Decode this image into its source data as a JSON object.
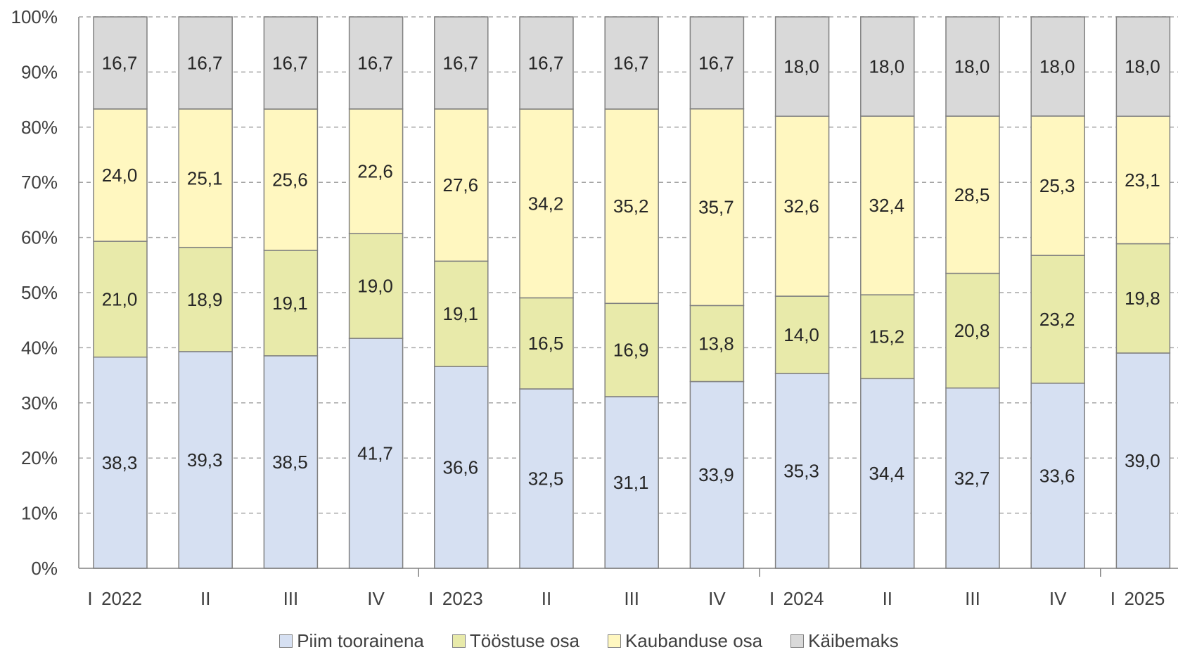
{
  "chart_data": {
    "type": "bar",
    "stacked": true,
    "percent_stacked": true,
    "categories": [
      "I",
      "II",
      "III",
      "IV",
      "I",
      "II",
      "III",
      "IV",
      "I",
      "II",
      "III",
      "IV",
      "I"
    ],
    "year_labels": [
      {
        "index": 0,
        "label": "2022"
      },
      {
        "index": 4,
        "label": "2023"
      },
      {
        "index": 8,
        "label": "2024"
      },
      {
        "index": 12,
        "label": "2025"
      }
    ],
    "series": [
      {
        "name": "Piim toorainena",
        "color": "#D6E0F2",
        "values": [
          38.3,
          39.3,
          38.5,
          41.7,
          36.6,
          32.5,
          31.1,
          33.9,
          35.3,
          34.4,
          32.7,
          33.6,
          39.0
        ],
        "labels": [
          "38,3",
          "39,3",
          "38,5",
          "41,7",
          "36,6",
          "32,5",
          "31,1",
          "33,9",
          "35,3",
          "34,4",
          "32,7",
          "33,6",
          "39,0"
        ]
      },
      {
        "name": "Tööstuse osa",
        "color": "#E8EAAA",
        "values": [
          21.0,
          18.9,
          19.1,
          19.0,
          19.1,
          16.5,
          16.9,
          13.8,
          14.0,
          15.2,
          20.8,
          23.2,
          19.8
        ],
        "labels": [
          "21,0",
          "18,9",
          "19,1",
          "19,0",
          "19,1",
          "16,5",
          "16,9",
          "13,8",
          "14,0",
          "15,2",
          "20,8",
          "23,2",
          "19,8"
        ]
      },
      {
        "name": "Kaubanduse osa",
        "color": "#FFF7C0",
        "values": [
          24.0,
          25.1,
          25.6,
          22.6,
          27.6,
          34.2,
          35.2,
          35.7,
          32.6,
          32.4,
          28.5,
          25.3,
          23.1
        ],
        "labels": [
          "24,0",
          "25,1",
          "25,6",
          "22,6",
          "27,6",
          "34,2",
          "35,2",
          "35,7",
          "32,6",
          "32,4",
          "28,5",
          "25,3",
          "23,1"
        ]
      },
      {
        "name": "Käibemaks",
        "color": "#D9D9D9",
        "values": [
          16.7,
          16.7,
          16.7,
          16.7,
          16.7,
          16.7,
          16.7,
          16.7,
          18.0,
          18.0,
          18.0,
          18.0,
          18.0
        ],
        "labels": [
          "16,7",
          "16,7",
          "16,7",
          "16,7",
          "16,7",
          "16,7",
          "16,7",
          "16,7",
          "18,0",
          "18,0",
          "18,0",
          "18,0",
          "18,0"
        ]
      }
    ],
    "yticks": [
      "0%",
      "10%",
      "20%",
      "30%",
      "40%",
      "50%",
      "60%",
      "70%",
      "80%",
      "90%",
      "100%"
    ],
    "ylim": [
      0,
      100
    ],
    "grid": true,
    "legend_position": "bottom"
  }
}
